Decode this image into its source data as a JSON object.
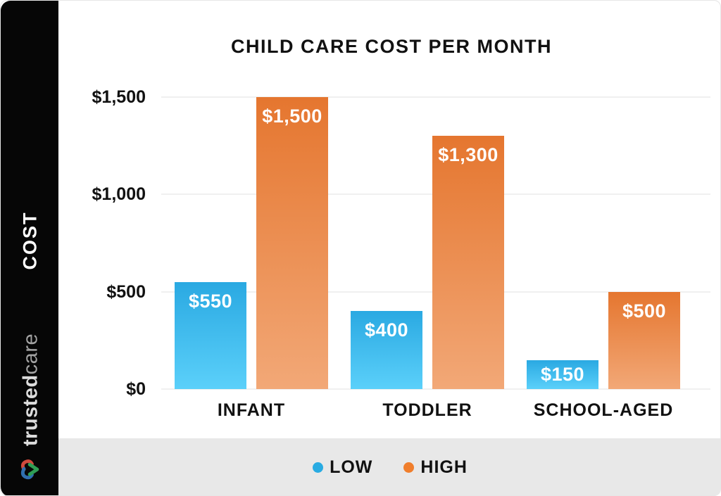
{
  "chart_data": {
    "type": "bar",
    "title": "CHILD CARE COST PER MONTH",
    "ylabel": "COST",
    "xlabel": "",
    "ylim": [
      0,
      1500
    ],
    "grid": true,
    "legend_position": "bottom",
    "categories": [
      "INFANT",
      "TODDLER",
      "SCHOOL-AGED"
    ],
    "yticks": [
      {
        "value": 0,
        "label": "$0"
      },
      {
        "value": 500,
        "label": "$500"
      },
      {
        "value": 1000,
        "label": "$1,000"
      },
      {
        "value": 1500,
        "label": "$1,500"
      }
    ],
    "series": [
      {
        "name": "LOW",
        "values": [
          550,
          400,
          150
        ],
        "value_labels": [
          "$550",
          "$400",
          "$150"
        ],
        "color_top": "#2aa9e2",
        "color_bottom": "#5bd0fa",
        "legend_dot_color": "#29abe2"
      },
      {
        "name": "HIGH",
        "values": [
          1500,
          1300,
          500
        ],
        "value_labels": [
          "$1,500",
          "$1,300",
          "$500"
        ],
        "color_top": "#e5762f",
        "color_bottom": "#f2a877",
        "legend_dot_color": "#f07e2c"
      }
    ]
  },
  "sidebar": {
    "axis_title": "COST",
    "brand_bold": "trusted",
    "brand_light": "care",
    "logo_icon": "heart-link-icon",
    "logo_colors": {
      "red": "#cf4a3d",
      "blue": "#2f6fae",
      "green": "#2f9e55"
    }
  },
  "colors": {
    "sidebar_bg": "#060606",
    "legend_strip_bg": "#e8e8e8",
    "gridline": "#f0f0f0",
    "title_text": "#111111",
    "bar_value_text": "#ffffff"
  }
}
